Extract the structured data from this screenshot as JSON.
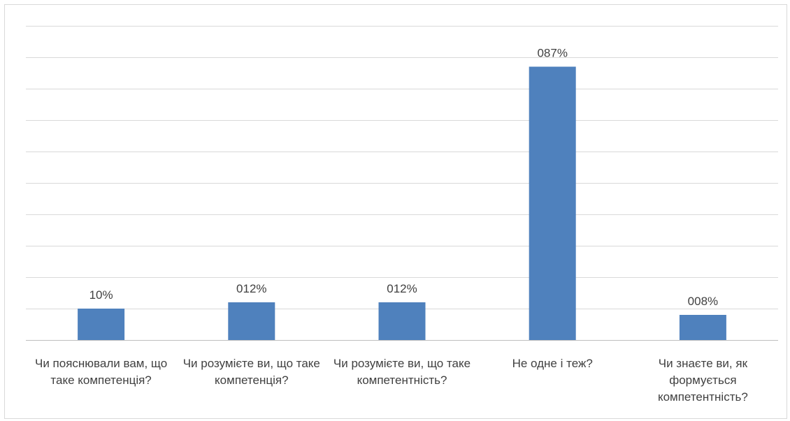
{
  "chart_data": {
    "type": "bar",
    "title": "",
    "xlabel": "",
    "ylabel": "",
    "categories": [
      "Чи пояснювали вам, що таке компетенція?",
      "Чи розумієте ви, що таке компетенція?",
      "Чи розумієте ви, що таке компетентність?",
      "Не одне і теж?",
      "Чи знаєте ви, як формується компетентність?"
    ],
    "values": [
      10,
      12,
      12,
      87,
      8
    ],
    "data_labels": [
      "10%",
      "012%",
      "012%",
      "087%",
      "008%"
    ],
    "ylim": [
      0,
      100
    ],
    "grid": true,
    "legend": "none",
    "bar_color": "#4f81bd"
  }
}
